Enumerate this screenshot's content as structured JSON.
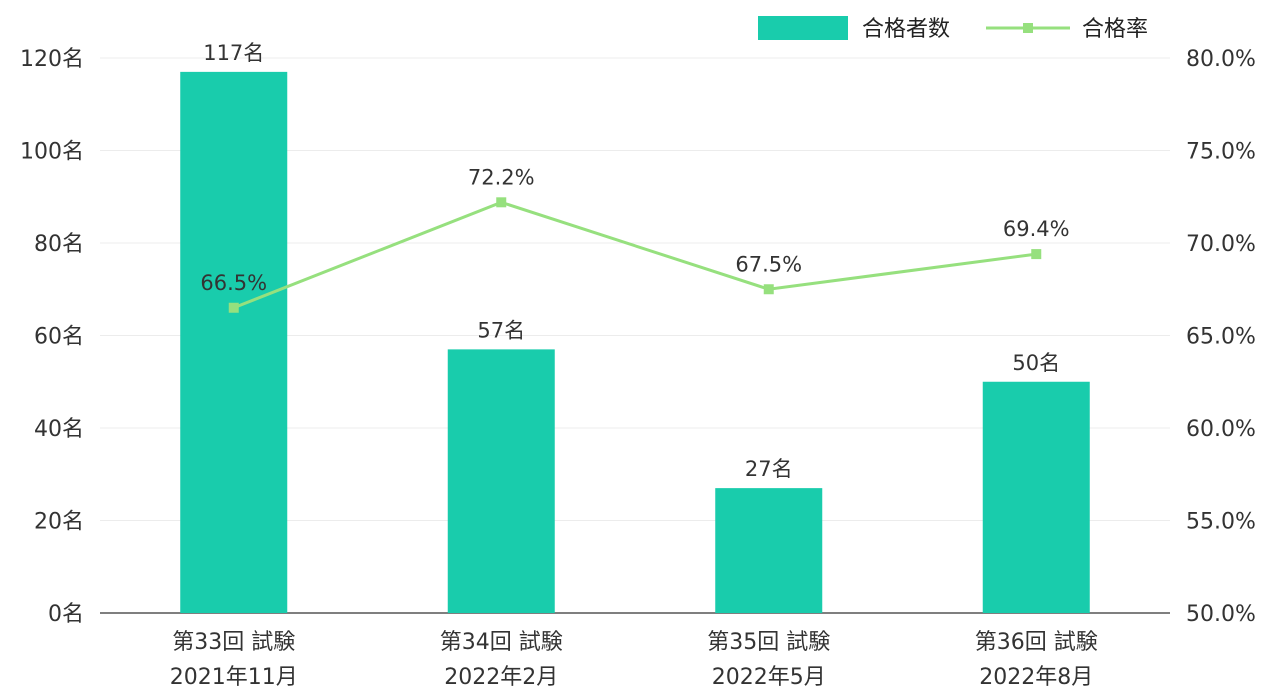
{
  "chart_data": {
    "type": "bar",
    "categories": [
      [
        "第33回 試験",
        "2021年11月"
      ],
      [
        "第34回 試験",
        "2022年2月"
      ],
      [
        "第35回 試験",
        "2022年5月"
      ],
      [
        "第36回 試験",
        "2022年8月"
      ]
    ],
    "series": [
      {
        "name": "合格者数",
        "type": "bar",
        "axis": "left",
        "color": "#19CCAC",
        "values": [
          117,
          57,
          27,
          50
        ],
        "labels": [
          "117名",
          "57名",
          "27名",
          "50名"
        ]
      },
      {
        "name": "合格率",
        "type": "line",
        "axis": "right",
        "color": "#96E07E",
        "values": [
          66.5,
          72.2,
          67.5,
          69.4
        ],
        "labels": [
          "66.5%",
          "72.2%",
          "67.5%",
          "69.4%"
        ]
      }
    ],
    "y_left": {
      "min": 0,
      "max": 120,
      "ticks": [
        "0名",
        "20名",
        "40名",
        "60名",
        "80名",
        "100名",
        "120名"
      ]
    },
    "y_right": {
      "min": 50,
      "max": 80,
      "ticks": [
        "50.0%",
        "55.0%",
        "60.0%",
        "65.0%",
        "70.0%",
        "75.0%",
        "80.0%"
      ]
    },
    "grid": true,
    "legend_position": "top-right"
  }
}
